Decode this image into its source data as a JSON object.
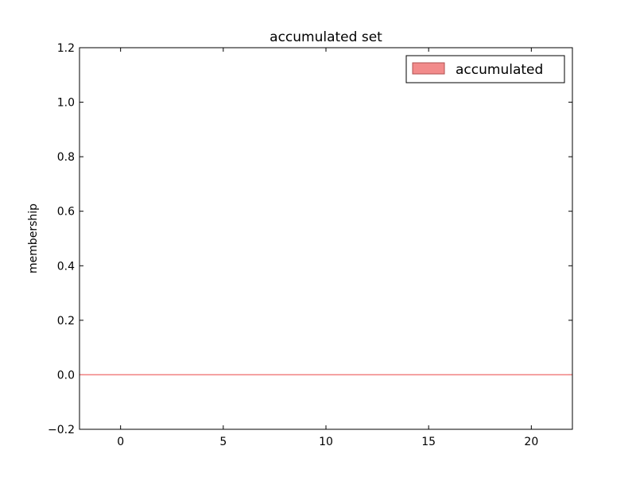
{
  "chart_data": {
    "type": "area",
    "title": "accumulated set",
    "xlabel": "",
    "ylabel": "membership",
    "xlim": [
      -2,
      22
    ],
    "ylim": [
      -0.2,
      1.2
    ],
    "x_ticks": [
      0,
      5,
      10,
      15,
      20
    ],
    "x_tick_labels": [
      "0",
      "5",
      "10",
      "15",
      "20"
    ],
    "y_ticks": [
      -0.2,
      0.0,
      0.2,
      0.4,
      0.6,
      0.8,
      1.0,
      1.2
    ],
    "y_tick_labels": [
      "−0.2",
      "0.0",
      "0.2",
      "0.4",
      "0.6",
      "0.8",
      "1.0",
      "1.2"
    ],
    "grid": false,
    "legend_position": "top-right",
    "series": [
      {
        "name": "accumulated",
        "color": "#f08080",
        "fill_color": "#f28b8b",
        "edge_color": "#b05050",
        "x": [
          -2,
          22
        ],
        "y": [
          0,
          0
        ]
      }
    ]
  }
}
